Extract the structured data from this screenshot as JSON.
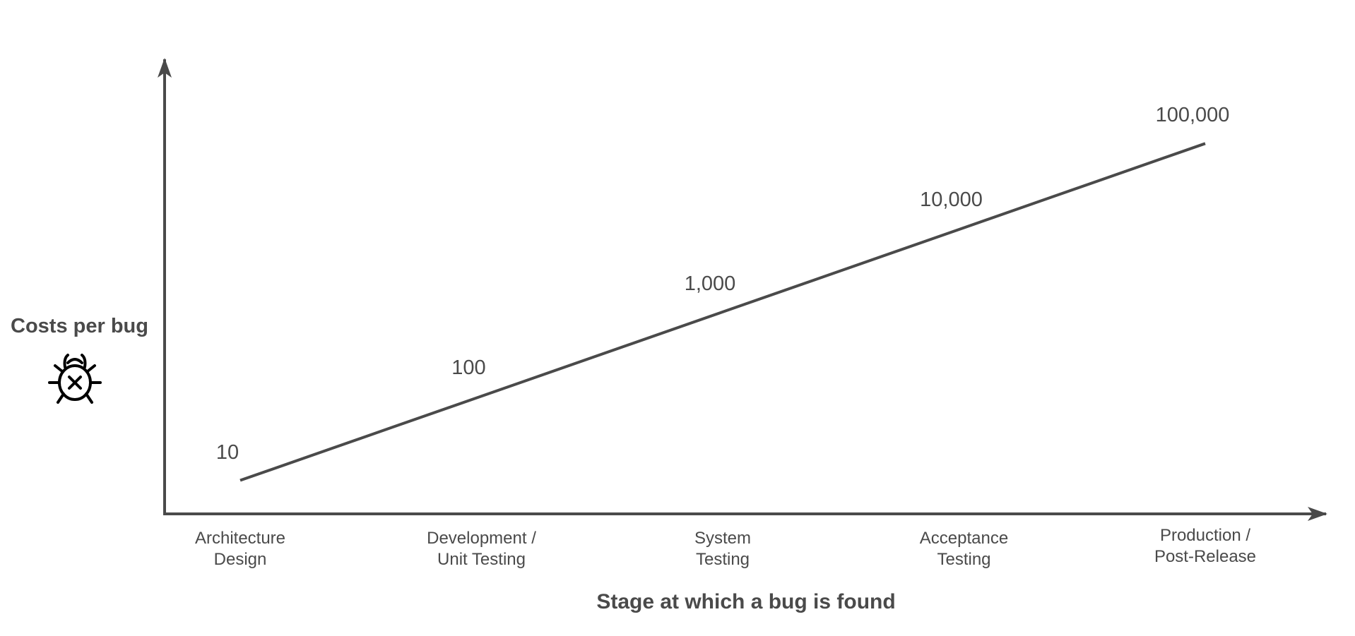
{
  "chart_data": {
    "type": "line",
    "y_label": "Costs per bug",
    "x_label": "Stage at which a bug is found",
    "categories": [
      "Architecture\nDesign",
      "Development /\nUnit Testing",
      "System\nTesting",
      "Acceptance\nTesting",
      "Production /\nPost-Release"
    ],
    "series": [
      {
        "name": "Costs per bug",
        "color": "#4a4a4a",
        "values": [
          10,
          100,
          1000,
          10000,
          100000
        ],
        "value_labels": [
          "10",
          "100",
          "1,000",
          "10,000",
          "100,000"
        ]
      }
    ],
    "ylim": [
      4,
      1000000
    ],
    "log_y": true
  }
}
